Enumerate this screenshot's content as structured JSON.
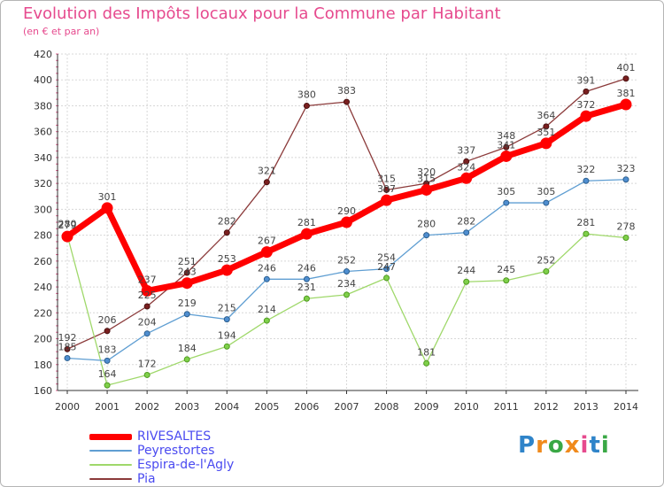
{
  "title": "Evolution des Impôts locaux pour la Commune par Habitant",
  "subtitle": "(en € et par an)",
  "logo": {
    "text": "Proxiti",
    "letters": [
      "P",
      "r",
      "o",
      "x",
      "i",
      "t",
      "i"
    ],
    "colors": [
      "#2f84c9",
      "#f08a1c",
      "#3aa845",
      "#f08a1c",
      "#e64a8e",
      "#2f84c9",
      "#3aa845"
    ]
  },
  "chart_data": {
    "type": "line",
    "x": [
      "2000",
      "2001",
      "2002",
      "2003",
      "2004",
      "2005",
      "2006",
      "2007",
      "2008",
      "2009",
      "2010",
      "2011",
      "2012",
      "2013",
      "2014"
    ],
    "ylim": [
      160,
      420
    ],
    "yticks": [
      160,
      180,
      200,
      220,
      240,
      260,
      280,
      300,
      320,
      340,
      360,
      380,
      400,
      420
    ],
    "grid": true,
    "legend_placement": "bottom-left",
    "series": [
      {
        "name": "RIVESALTES",
        "color": "#ff0000",
        "values": [
          279,
          301,
          237,
          243,
          253,
          267,
          281,
          290,
          307,
          315,
          324,
          341,
          351,
          372,
          381
        ]
      },
      {
        "name": "Peyrestortes",
        "color": "#5f9ed2",
        "values": [
          185,
          183,
          204,
          219,
          215,
          246,
          246,
          252,
          254,
          280,
          282,
          305,
          305,
          322,
          323
        ]
      },
      {
        "name": "Espira-de-l'Agly",
        "color": "#9fd86a",
        "values": [
          280,
          164,
          172,
          184,
          194,
          214,
          231,
          234,
          247,
          181,
          244,
          245,
          252,
          281,
          278
        ]
      },
      {
        "name": "Pia",
        "color": "#8b3a3a",
        "values": [
          192,
          206,
          225,
          251,
          282,
          321,
          380,
          383,
          315,
          320,
          337,
          348,
          364,
          391,
          401
        ]
      }
    ]
  }
}
